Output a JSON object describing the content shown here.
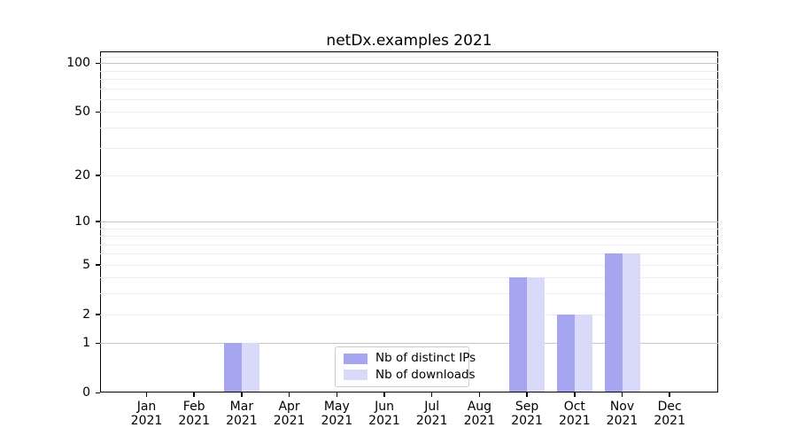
{
  "title": "netDx.examples 2021",
  "chart_data": {
    "type": "bar",
    "title": "netDx.examples 2021",
    "x_months": [
      "Jan",
      "Feb",
      "Mar",
      "Apr",
      "May",
      "Jun",
      "Jul",
      "Aug",
      "Sep",
      "Oct",
      "Nov",
      "Dec"
    ],
    "x_year": "2021",
    "series": [
      {
        "name": "Nb of distinct IPs",
        "color": "#a5a5f0",
        "values": [
          0,
          0,
          1,
          0,
          0,
          0,
          0,
          0,
          4,
          2,
          6,
          0
        ]
      },
      {
        "name": "Nb of downloads",
        "color": "#d9d9f9",
        "values": [
          0,
          0,
          1,
          0,
          0,
          0,
          0,
          0,
          4,
          2,
          6,
          0
        ]
      }
    ],
    "yscale": "log10(1+x)",
    "yticks": [
      0,
      1,
      2,
      5,
      10,
      20,
      50,
      100
    ],
    "ylim": [
      0,
      118
    ],
    "grid": {
      "minor_values": [
        2,
        3,
        4,
        5,
        6,
        7,
        8,
        9,
        20,
        30,
        40,
        50,
        60,
        70,
        80,
        90,
        110
      ],
      "major_values": [
        1,
        10,
        100
      ],
      "minor_color": "#ededed",
      "major_color": "#c4c4c4"
    },
    "legend_position": "lower center"
  }
}
